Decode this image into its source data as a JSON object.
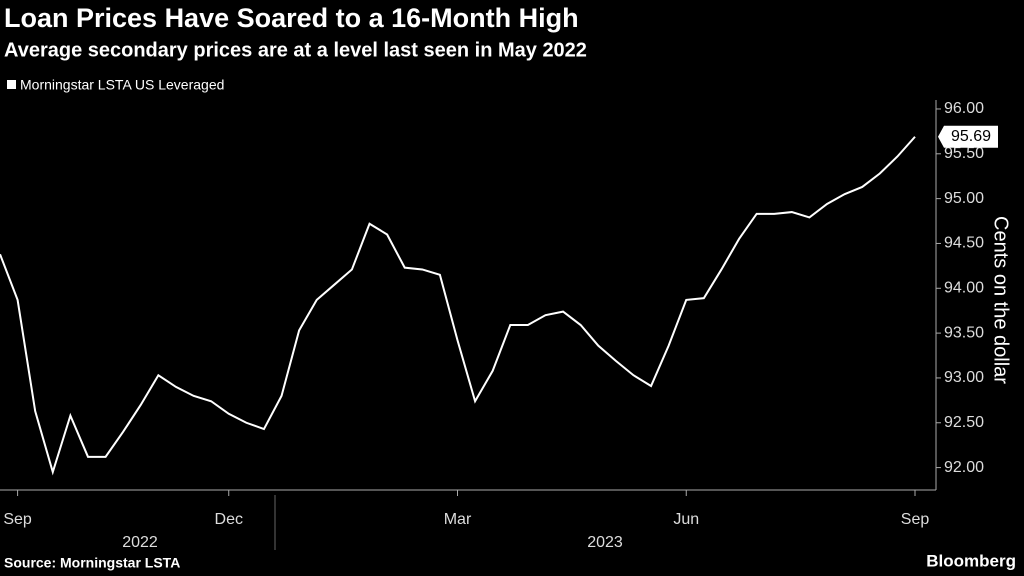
{
  "chart_data": {
    "type": "line",
    "title": "Loan Prices Have Soared to a 16-Month High",
    "subtitle": "Average secondary prices are at a level last seen in May 2022",
    "y_label": "Cents on the dollar",
    "source": "Source: Morningstar LSTA",
    "brand": "Bloomberg",
    "categories": [
      null,
      "Sep",
      null,
      null,
      null,
      null,
      null,
      null,
      null,
      null,
      null,
      null,
      null,
      "Dec",
      null,
      null,
      null,
      null,
      null,
      null,
      null,
      null,
      null,
      null,
      null,
      null,
      "Mar",
      null,
      null,
      null,
      null,
      null,
      null,
      null,
      null,
      null,
      null,
      null,
      null,
      "Jun",
      null,
      null,
      null,
      null,
      null,
      null,
      null,
      null,
      null,
      null,
      null,
      null,
      "Sep"
    ],
    "year_labels": [
      "2022",
      "2023"
    ],
    "series": [
      {
        "name": "Morningstar LSTA US Leveraged",
        "color": "#ffffff",
        "values": [
          94.38,
          93.87,
          92.63,
          91.95,
          92.58,
          92.12,
          92.12,
          92.4,
          92.7,
          93.03,
          92.9,
          92.8,
          92.74,
          92.6,
          92.5,
          92.43,
          92.8,
          93.53,
          93.87,
          94.04,
          94.21,
          94.72,
          94.6,
          94.23,
          94.21,
          94.15,
          93.42,
          92.74,
          93.08,
          93.59,
          93.59,
          93.7,
          93.74,
          93.59,
          93.36,
          93.19,
          93.03,
          92.91,
          93.36,
          93.87,
          93.89,
          94.21,
          94.55,
          94.83,
          94.83,
          94.85,
          94.79,
          94.94,
          95.05,
          95.13,
          95.28,
          95.47,
          95.69
        ]
      }
    ],
    "ylim": [
      91.75,
      96.1
    ],
    "yticks": [
      {
        "value": 92,
        "label": "92.00"
      },
      {
        "value": 92.5,
        "label": "92.50"
      },
      {
        "value": 93,
        "label": "93.00"
      },
      {
        "value": 93.5,
        "label": "93.50"
      },
      {
        "value": 94,
        "label": "94.00"
      },
      {
        "value": 94.5,
        "label": "94.50"
      },
      {
        "value": 95,
        "label": "95.00"
      },
      {
        "value": 95.5,
        "label": "95.50"
      },
      {
        "value": 96,
        "label": "96.00"
      }
    ],
    "grid": false
  }
}
